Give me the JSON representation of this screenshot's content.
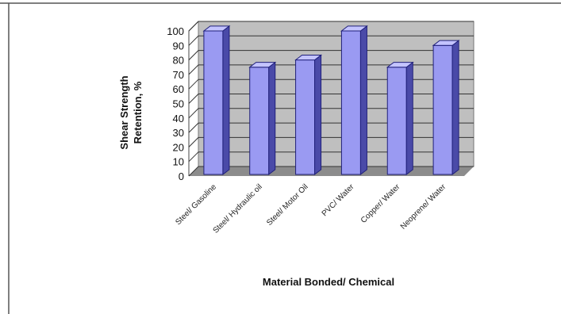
{
  "chart_data": {
    "type": "bar",
    "ylabel_line1": "Shear Strength",
    "ylabel_line2": "Retention, %",
    "xlabel": "Material Bonded/ Chemical",
    "categories": [
      "Steel/ Gasoline",
      "Steel/ Hydraulic oil",
      "Steel/ Motor Oil",
      "PVC/ Water",
      "Copper/ Water",
      "Neoprene/ Water"
    ],
    "values": [
      100,
      75,
      80,
      100,
      75,
      90
    ],
    "ylim": [
      0,
      100
    ],
    "yticks": [
      "0",
      "10",
      "20",
      "30",
      "40",
      "50",
      "60",
      "70",
      "80",
      "90",
      "100"
    ],
    "grid": true,
    "legend": "none",
    "colors": {
      "bar_front": "#9a9af2",
      "bar_side": "#4a4aa8",
      "bar_top": "#c4c4ff",
      "wall": "#bfbfbf",
      "floor": "#8c8c8c",
      "grid": "#333333"
    }
  }
}
